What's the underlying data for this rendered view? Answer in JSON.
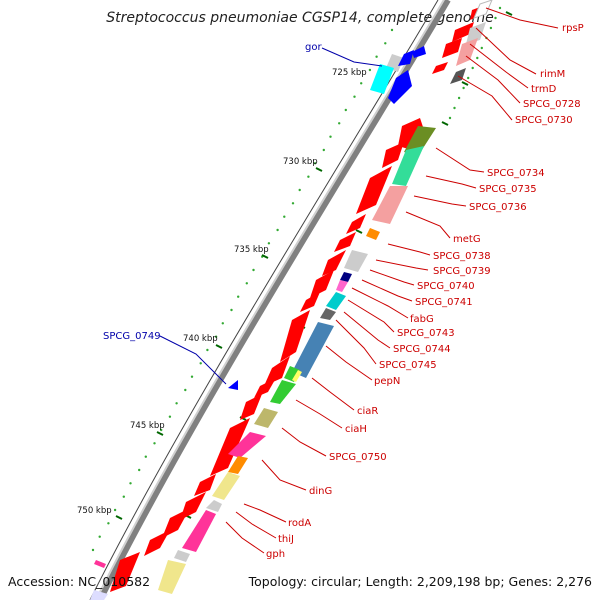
{
  "title": "Streptococcus pneumoniae CGSP14, complete genome",
  "footer": {
    "accession": "Accession: NC_010582",
    "topology": "Topology: circular; Length: 2,209,198 bp; Genes: 2,276"
  },
  "ticks": [
    {
      "label": "725 kbp"
    },
    {
      "label": "730 kbp"
    },
    {
      "label": "735 kbp"
    },
    {
      "label": "740 kbp"
    },
    {
      "label": "745 kbp"
    },
    {
      "label": "750 kbp"
    }
  ],
  "labels_right": [
    {
      "text": "rpsP"
    },
    {
      "text": "rimM"
    },
    {
      "text": "trmD"
    },
    {
      "text": "SPCG_0728"
    },
    {
      "text": "SPCG_0730"
    },
    {
      "text": "SPCG_0734"
    },
    {
      "text": "SPCG_0735"
    },
    {
      "text": "SPCG_0736"
    },
    {
      "text": "metG"
    },
    {
      "text": "SPCG_0738"
    },
    {
      "text": "SPCG_0739"
    },
    {
      "text": "SPCG_0740"
    },
    {
      "text": "SPCG_0741"
    },
    {
      "text": "fabG"
    },
    {
      "text": "SPCG_0743"
    },
    {
      "text": "SPCG_0744"
    },
    {
      "text": "SPCG_0745"
    },
    {
      "text": "pepN"
    },
    {
      "text": "ciaR"
    },
    {
      "text": "ciaH"
    },
    {
      "text": "SPCG_0750"
    },
    {
      "text": "dinG"
    },
    {
      "text": "rodA"
    },
    {
      "text": "thiJ"
    },
    {
      "text": "gph"
    }
  ],
  "labels_left": [
    {
      "text": "gor"
    },
    {
      "text": "SPCG_0749"
    }
  ],
  "colors": {
    "forward_gene": "#ff0000",
    "reverse_gene": "#0000ff",
    "right_label": "#cc0000",
    "left_label": "#0000aa",
    "backbone": "#808080",
    "tick": "#006600"
  }
}
